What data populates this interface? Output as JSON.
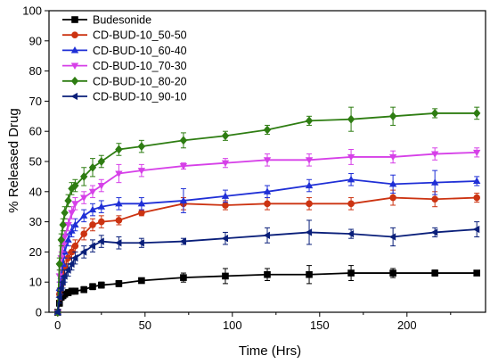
{
  "chart_data": {
    "type": "line",
    "xlabel": "Time (Hrs)",
    "ylabel": "% Released Drug",
    "xlim": [
      -5,
      245
    ],
    "ylim": [
      0,
      100
    ],
    "xticks": [
      0,
      50,
      100,
      150,
      200
    ],
    "yticks": [
      0,
      10,
      20,
      30,
      40,
      50,
      60,
      70,
      80,
      90,
      100
    ],
    "x_tick_labels": [
      "0",
      "50",
      "100",
      "150",
      "200"
    ],
    "y_tick_labels": [
      "0",
      "10",
      "20",
      "30",
      "40",
      "50",
      "60",
      "70",
      "80",
      "90",
      "100"
    ],
    "legend_position": "top-left",
    "x": [
      0,
      1,
      2,
      3,
      4,
      6,
      8,
      10,
      15,
      20,
      25,
      35,
      48,
      72,
      96,
      120,
      144,
      168,
      192,
      216,
      240
    ],
    "series": [
      {
        "name": "Budesonide",
        "color": "#000000",
        "marker": "square",
        "values": [
          0,
          3,
          5,
          5.5,
          6,
          6.5,
          7,
          7,
          7.5,
          8.5,
          9,
          9.5,
          10.5,
          11.5,
          12,
          12.5,
          12.5,
          13,
          13,
          13,
          13
        ],
        "errors": [
          0.5,
          1,
          1,
          1,
          1,
          1,
          1,
          1,
          1,
          1,
          1,
          1,
          0.5,
          1.5,
          2.5,
          2,
          3,
          2.5,
          1.5,
          1,
          0.5
        ]
      },
      {
        "name": "CD-BUD-10_50-50",
        "color": "#cc3311",
        "marker": "circle",
        "values": [
          0,
          6,
          9,
          12,
          15,
          18,
          20,
          22,
          26,
          29,
          30,
          30.5,
          33,
          36,
          35.5,
          36,
          36,
          36,
          38,
          37.5,
          38
        ],
        "errors": [
          0.5,
          2,
          2,
          2,
          2,
          2,
          2,
          2,
          2,
          2,
          2,
          1.5,
          1,
          2,
          1.5,
          2,
          2,
          2,
          2.5,
          2.5,
          1.5
        ]
      },
      {
        "name": "CD-BUD-10_60-40",
        "color": "#1f2fd6",
        "marker": "triangle-up",
        "values": [
          0,
          8,
          12,
          16,
          20,
          24,
          27,
          29,
          32,
          34,
          35,
          36,
          36,
          37,
          38.5,
          40,
          42,
          44,
          42.5,
          43,
          43.5
        ],
        "errors": [
          0.5,
          2,
          2,
          2,
          2,
          2,
          2,
          2,
          2,
          2,
          2,
          2,
          2,
          4,
          2,
          2,
          2,
          2,
          3,
          4,
          1.5
        ]
      },
      {
        "name": "CD-BUD-10_70-30",
        "color": "#d640e8",
        "marker": "triangle-down",
        "values": [
          0,
          12,
          18,
          22,
          25,
          29,
          33,
          36,
          38,
          40,
          42,
          46,
          47,
          48.5,
          49.5,
          50.5,
          50.5,
          51.5,
          51.5,
          52.5,
          53
        ],
        "errors": [
          0.5,
          2,
          2,
          2,
          2,
          2,
          2,
          2,
          2,
          2,
          2,
          3,
          2,
          1,
          1.5,
          2,
          2,
          2.5,
          2,
          2,
          1.5
        ]
      },
      {
        "name": "CD-BUD-10_80-20",
        "color": "#2e7d12",
        "marker": "diamond",
        "values": [
          0,
          16,
          24,
          29,
          33,
          37,
          41,
          42,
          45,
          48,
          50,
          54,
          55,
          57,
          58.5,
          60.5,
          63.5,
          64,
          65,
          66,
          66
        ],
        "errors": [
          0.5,
          2,
          2,
          2,
          2,
          2,
          2,
          2,
          3,
          3,
          2,
          2,
          2,
          2.5,
          1.5,
          1.5,
          1.5,
          4,
          3,
          1.5,
          2
        ]
      },
      {
        "name": "CD-BUD-10_90-10",
        "color": "#0a1f7a",
        "marker": "triangle-left",
        "values": [
          0,
          5,
          8,
          10,
          12,
          14,
          16,
          18,
          20,
          22,
          23.5,
          23,
          23,
          23.5,
          24.5,
          25.5,
          26.5,
          26,
          25,
          26.5,
          27.5
        ],
        "errors": [
          0.5,
          2,
          2,
          2,
          2,
          2,
          2,
          2,
          2,
          2,
          2,
          2,
          1.5,
          1,
          2,
          2.5,
          4,
          1.5,
          3,
          1.5,
          2.5
        ]
      }
    ]
  }
}
